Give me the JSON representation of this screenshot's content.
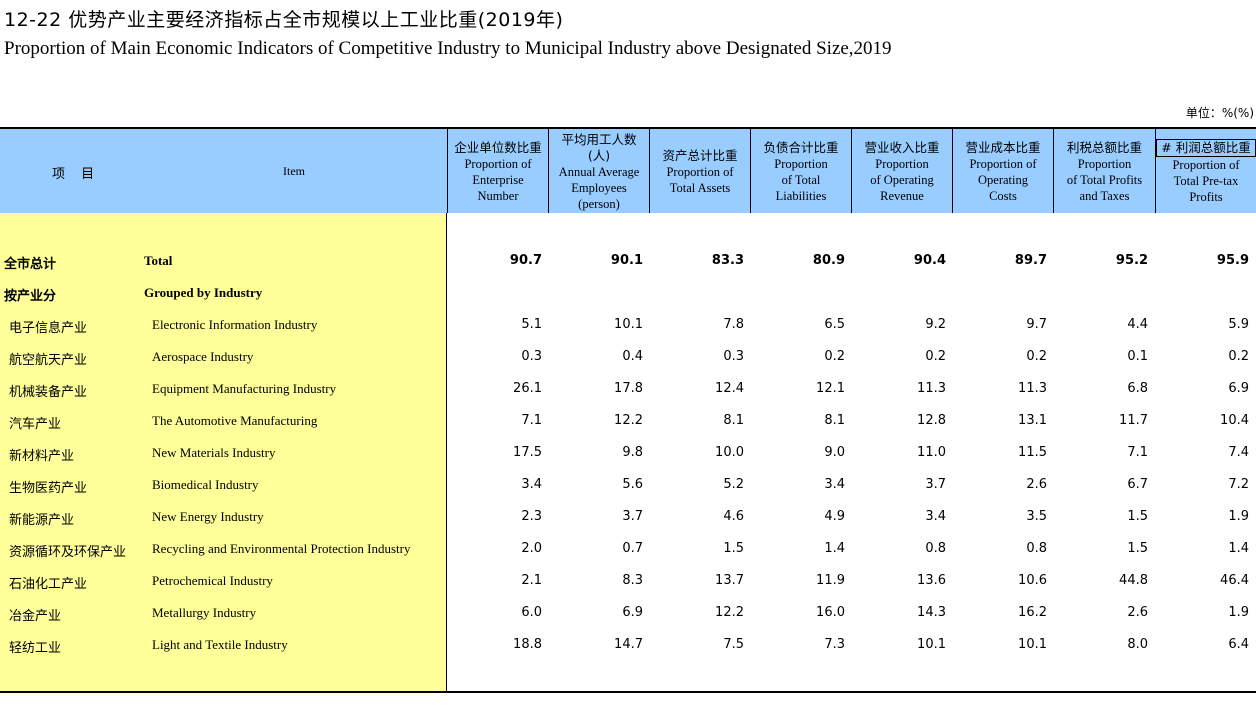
{
  "title": {
    "cn": "12-22   优势产业主要经济指标占全市规模以上工业比重(2019年)",
    "en": "Proportion of Main Economic Indicators of Competitive Industry to Municipal Industry above Designated Size,2019"
  },
  "unit": "单位：%(%)",
  "header": {
    "item_cn": "项 目",
    "item_en": "Item",
    "columns": [
      {
        "cn": "企业单位数比重",
        "en": [
          "Proportion of",
          "Enterprise",
          "Number"
        ]
      },
      {
        "cn": "平均用工人数",
        "cn2": "(人)",
        "en": [
          "Annual Average",
          "Employees",
          "(person)"
        ]
      },
      {
        "cn": "资产总计比重",
        "en": [
          "Proportion of",
          "Total Assets"
        ]
      },
      {
        "cn": "负债合计比重",
        "en": [
          "Proportion",
          "of Total",
          "Liabilities"
        ]
      },
      {
        "cn": "营业收入比重",
        "en": [
          "Proportion",
          "of Operating",
          "Revenue"
        ]
      },
      {
        "cn": "营业成本比重",
        "en": [
          "Proportion of",
          "Operating",
          "Costs"
        ]
      },
      {
        "cn": "利税总额比重",
        "en": [
          "Proportion",
          "of Total Profits",
          "and Taxes"
        ]
      },
      {
        "cn": "# 利润总额比重",
        "en": [
          "Proportion of",
          "Total Pre-tax",
          "Profits"
        ]
      }
    ]
  },
  "rows": [
    {
      "cn": "全市总计",
      "en": "Total",
      "bold": true,
      "values": [
        "90.7",
        "90.1",
        "83.3",
        "80.9",
        "90.4",
        "89.7",
        "95.2",
        "95.9"
      ]
    },
    {
      "cn": "按产业分",
      "en": "Grouped by Industry",
      "bold": true,
      "values": []
    },
    {
      "cn": "电子信息产业",
      "en": "Electronic Information Industry",
      "values": [
        "5.1",
        "10.1",
        "7.8",
        "6.5",
        "9.2",
        "9.7",
        "4.4",
        "5.9"
      ]
    },
    {
      "cn": "航空航天产业",
      "en": "Aerospace Industry",
      "values": [
        "0.3",
        "0.4",
        "0.3",
        "0.2",
        "0.2",
        "0.2",
        "0.1",
        "0.2"
      ]
    },
    {
      "cn": "机械装备产业",
      "en": "Equipment Manufacturing Industry",
      "values": [
        "26.1",
        "17.8",
        "12.4",
        "12.1",
        "11.3",
        "11.3",
        "6.8",
        "6.9"
      ]
    },
    {
      "cn": "汽车产业",
      "en": "The Automotive Manufacturing",
      "values": [
        "7.1",
        "12.2",
        "8.1",
        "8.1",
        "12.8",
        "13.1",
        "11.7",
        "10.4"
      ]
    },
    {
      "cn": "新材料产业",
      "en": "New Materials Industry",
      "values": [
        "17.5",
        "9.8",
        "10.0",
        "9.0",
        "11.0",
        "11.5",
        "7.1",
        "7.4"
      ]
    },
    {
      "cn": "生物医药产业",
      "en": "Biomedical Industry",
      "values": [
        "3.4",
        "5.6",
        "5.2",
        "3.4",
        "3.7",
        "2.6",
        "6.7",
        "7.2"
      ]
    },
    {
      "cn": "新能源产业",
      "en": "New Energy Industry",
      "values": [
        "2.3",
        "3.7",
        "4.6",
        "4.9",
        "3.4",
        "3.5",
        "1.5",
        "1.9"
      ]
    },
    {
      "cn": "资源循环及环保产业",
      "en": "Recycling and Environmental Protection Industry",
      "values": [
        "2.0",
        "0.7",
        "1.5",
        "1.4",
        "0.8",
        "0.8",
        "1.5",
        "1.4"
      ]
    },
    {
      "cn": "石油化工产业",
      "en": "Petrochemical Industry",
      "values": [
        "2.1",
        "8.3",
        "13.7",
        "11.9",
        "13.6",
        "10.6",
        "44.8",
        "46.4"
      ]
    },
    {
      "cn": "冶金产业",
      "en": "Metallurgy Industry",
      "values": [
        "6.0",
        "6.9",
        "12.2",
        "16.0",
        "14.3",
        "16.2",
        "2.6",
        "1.9"
      ]
    },
    {
      "cn": "轻纺工业",
      "en": "Light and Textile Industry",
      "values": [
        "18.8",
        "14.7",
        "7.5",
        "7.3",
        "10.1",
        "10.1",
        "8.0",
        "6.4"
      ]
    }
  ]
}
